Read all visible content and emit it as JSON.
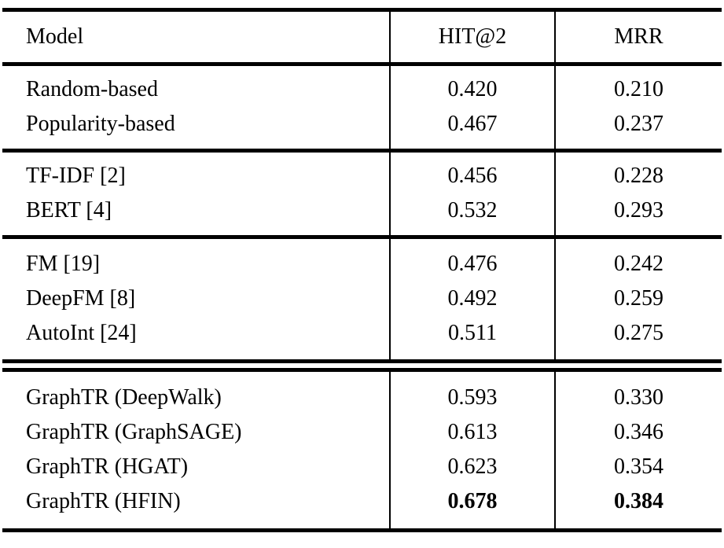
{
  "colors": {
    "text": "#000000",
    "background": "#ffffff",
    "rule": "#000000"
  },
  "table": {
    "columns": [
      "Model",
      "HIT@2",
      "MRR"
    ],
    "groups": [
      {
        "rows": [
          {
            "model": "Random-based",
            "hit": "0.420",
            "mrr": "0.210"
          },
          {
            "model": "Popularity-based",
            "hit": "0.467",
            "mrr": "0.237"
          }
        ]
      },
      {
        "rows": [
          {
            "model": "TF-IDF [2]",
            "hit": "0.456",
            "mrr": "0.228"
          },
          {
            "model": "BERT [4]",
            "hit": "0.532",
            "mrr": "0.293"
          }
        ]
      },
      {
        "rows": [
          {
            "model": "FM [19]",
            "hit": "0.476",
            "mrr": "0.242"
          },
          {
            "model": "DeepFM [8]",
            "hit": "0.492",
            "mrr": "0.259"
          },
          {
            "model": "AutoInt [24]",
            "hit": "0.511",
            "mrr": "0.275"
          }
        ]
      },
      {
        "rows": [
          {
            "model": "GraphTR (DeepWalk)",
            "hit": "0.593",
            "mrr": "0.330"
          },
          {
            "model": "GraphTR (GraphSAGE)",
            "hit": "0.613",
            "mrr": "0.346"
          },
          {
            "model": "GraphTR (HGAT)",
            "hit": "0.623",
            "mrr": "0.354"
          },
          {
            "model": "GraphTR (HFIN)",
            "hit": "0.678",
            "mrr": "0.384",
            "bold": true
          }
        ]
      }
    ]
  }
}
